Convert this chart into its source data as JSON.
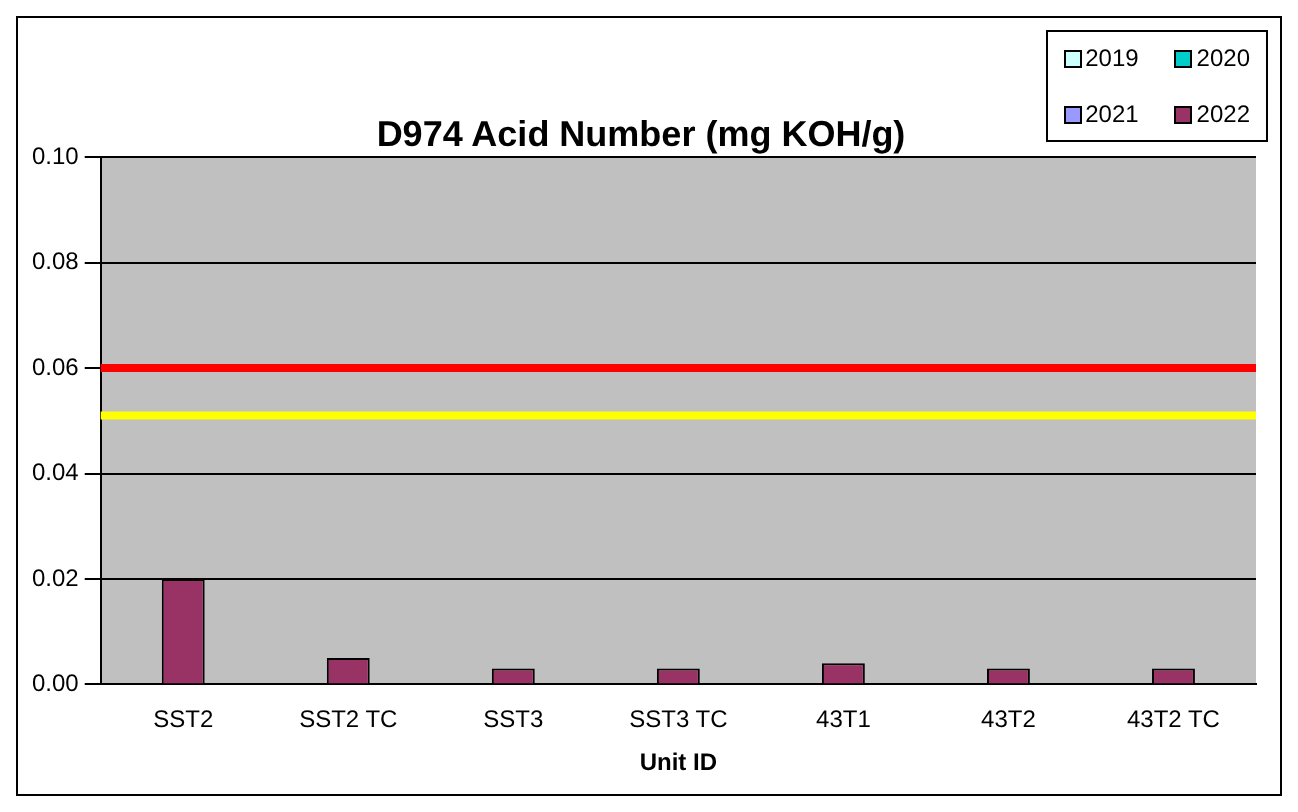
{
  "chart_data": {
    "type": "bar",
    "title": "D974 Acid Number (mg KOH/g)",
    "xlabel": "Unit ID",
    "categories": [
      "SST2",
      "SST2 TC",
      "SST3",
      "SST3 TC",
      "43T1",
      "43T2",
      "43T2 TC"
    ],
    "series": [
      {
        "name": "2019",
        "color": "#ccffff",
        "values": [
          null,
          null,
          null,
          null,
          null,
          null,
          null
        ]
      },
      {
        "name": "2020",
        "color": "#00cccc",
        "values": [
          null,
          null,
          null,
          null,
          null,
          null,
          null
        ]
      },
      {
        "name": "2021",
        "color": "#9999ff",
        "values": [
          null,
          null,
          null,
          null,
          null,
          null,
          null
        ]
      },
      {
        "name": "2022",
        "color": "#993366",
        "values": [
          0.02,
          0.005,
          0.003,
          0.003,
          0.004,
          0.003,
          0.003
        ]
      }
    ],
    "ylim": [
      0,
      0.1
    ],
    "yticks": [
      {
        "value": 0,
        "label": "0.00"
      },
      {
        "value": 0.02,
        "label": "0.02"
      },
      {
        "value": 0.04,
        "label": "0.04"
      },
      {
        "value": 0.06,
        "label": "0.06"
      },
      {
        "value": 0.08,
        "label": "0.08"
      },
      {
        "value": 0.1,
        "label": "0.10"
      }
    ],
    "ref_lines": [
      {
        "axis": "y",
        "value": 0.06,
        "color": "#ff0000"
      },
      {
        "axis": "y",
        "value": 0.051,
        "color": "#ffff00"
      }
    ],
    "grid": "y",
    "legend": "top right"
  }
}
